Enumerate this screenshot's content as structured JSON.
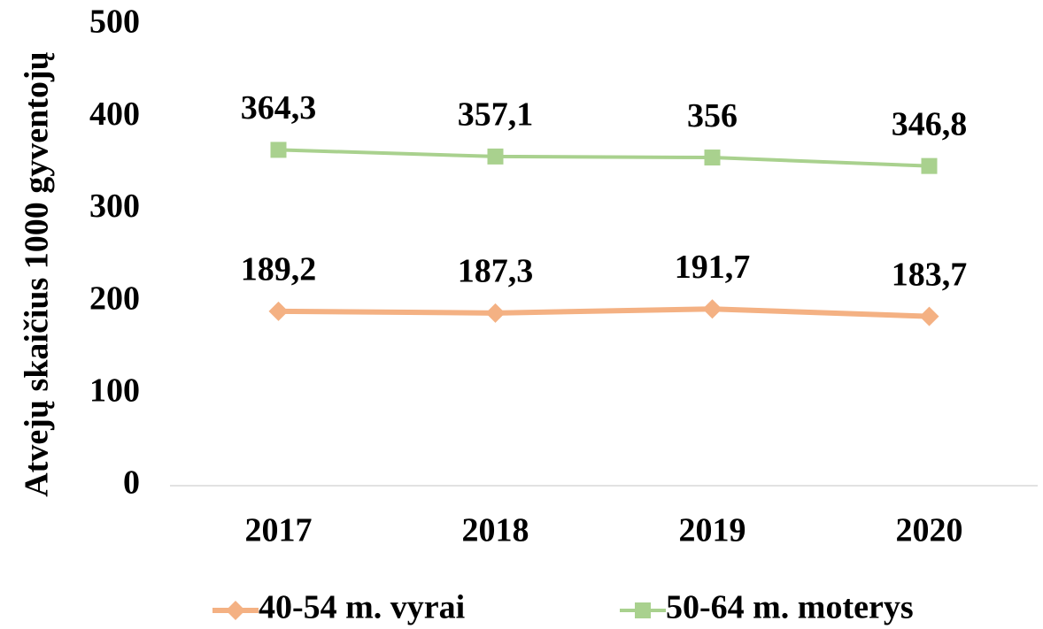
{
  "chart_data": {
    "type": "line",
    "y_label": "Atvejų skaičius 1000 gyventojų",
    "categories": [
      "2017",
      "2018",
      "2019",
      "2020"
    ],
    "series": [
      {
        "name": "40-54 m. vyrai",
        "color": "#f4b183",
        "marker": "diamond",
        "values": [
          189.2,
          187.3,
          191.7,
          183.7
        ],
        "value_labels": [
          "189,2",
          "187,3",
          "191,7",
          "183,7"
        ]
      },
      {
        "name": "50-64 m. moterys",
        "color": "#a9d18e",
        "marker": "square",
        "values": [
          364.3,
          357.1,
          356,
          346.8
        ],
        "value_labels": [
          "364,3",
          "357,1",
          "356",
          "346,8"
        ]
      }
    ],
    "ylim": [
      0,
      500
    ],
    "yticks": [
      0,
      100,
      200,
      300,
      400,
      500
    ],
    "grid": false,
    "legend": "bottom"
  }
}
